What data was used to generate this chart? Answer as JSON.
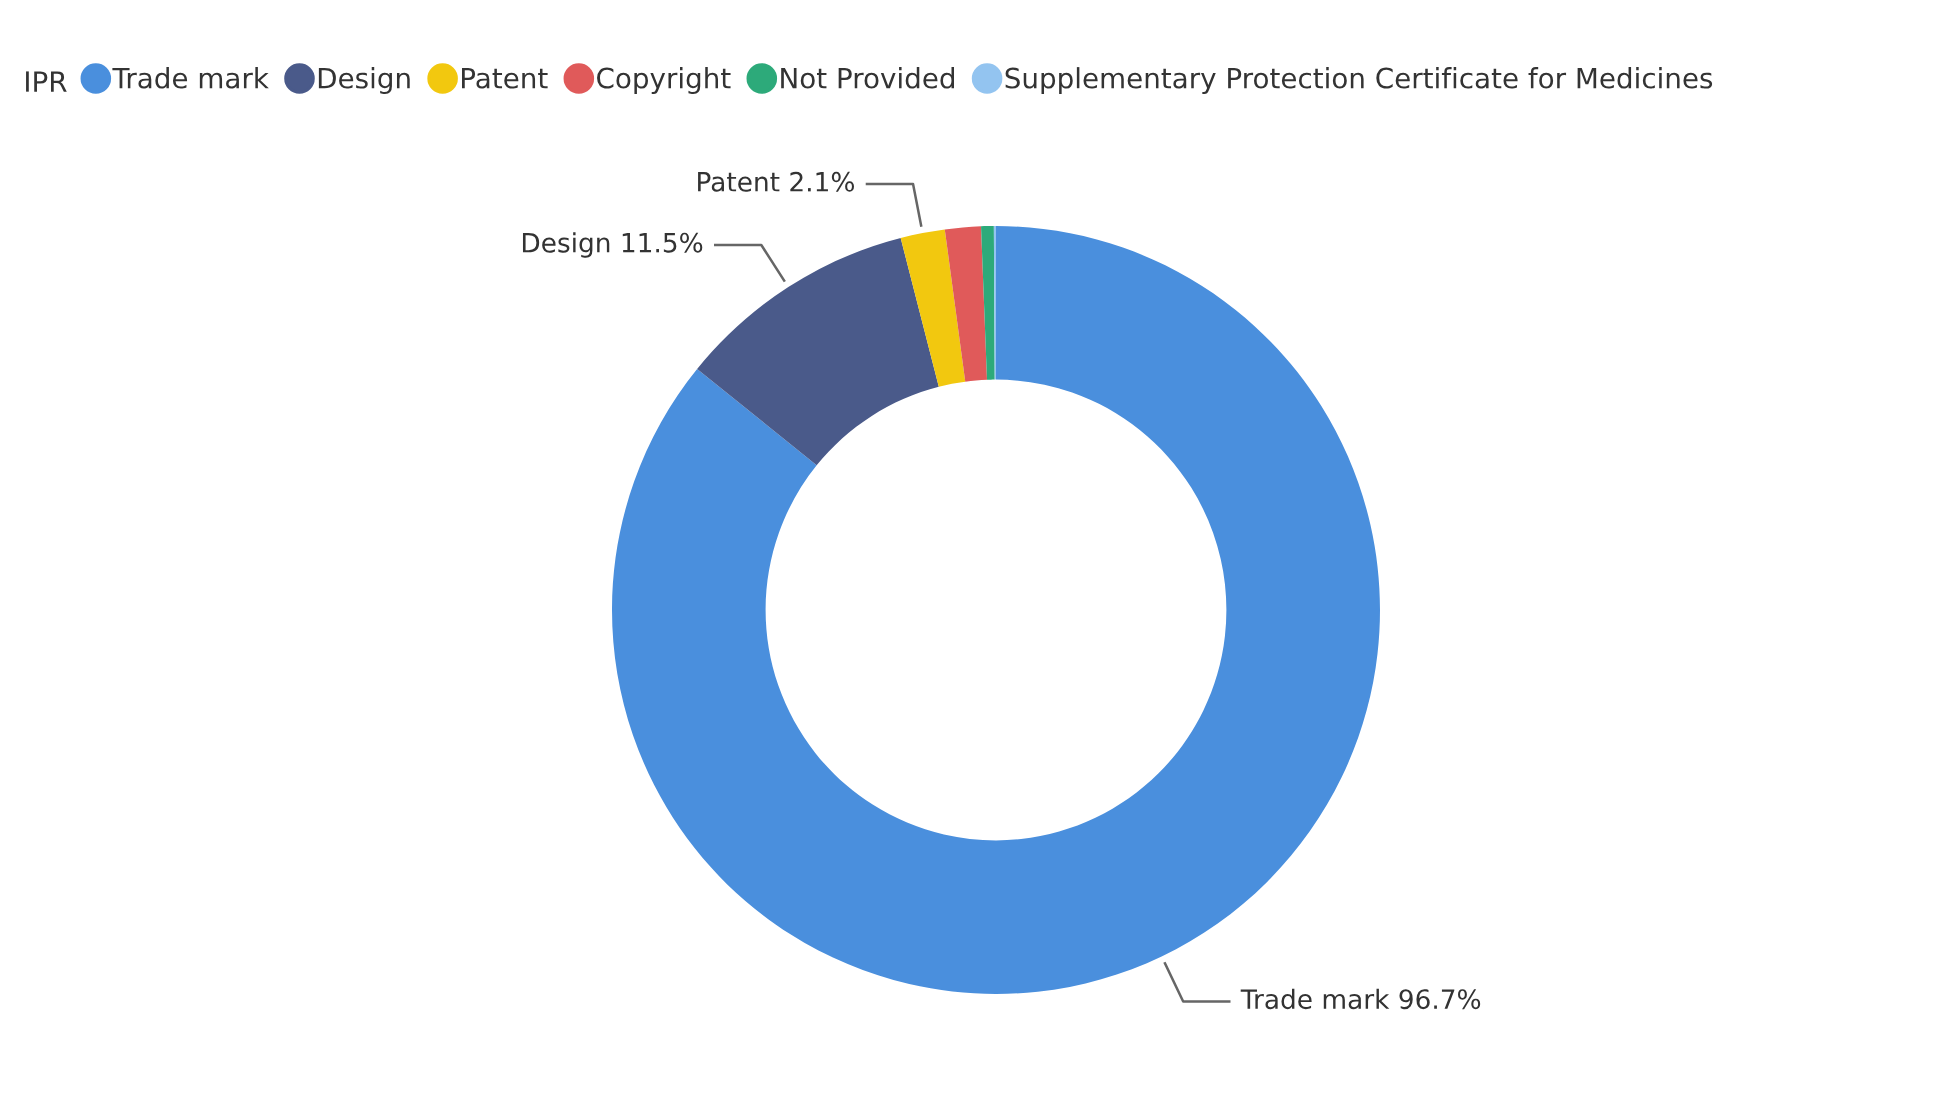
{
  "chart_data": {
    "type": "donut",
    "legend_title": "IPR",
    "legend": "top left",
    "categories": [
      "Trade mark",
      "Design",
      "Patent",
      "Copyright",
      "Not Provided",
      "Supplementary Protection Certificate for Medicines"
    ],
    "values": [
      96.7,
      11.5,
      2.1,
      1.7,
      0.6,
      0.1
    ],
    "colors": [
      "#4a8fdd",
      "#4a5a8a",
      "#f2c80f",
      "#e05a5a",
      "#2daa7a",
      "#93c4f0"
    ],
    "value_labels": [
      "Trade mark 96.7%",
      "Design 11.5%",
      "Patent 2.1%",
      null,
      null,
      null
    ]
  }
}
